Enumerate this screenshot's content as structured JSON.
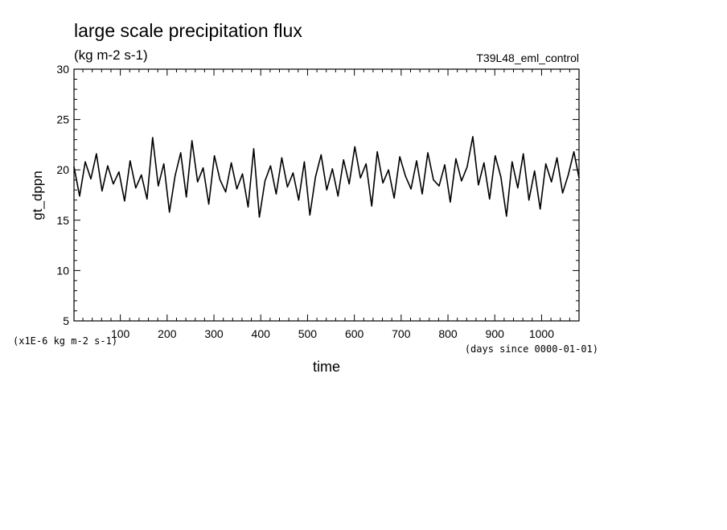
{
  "chart_data": {
    "type": "line",
    "title": "large scale precipitation flux",
    "subtitle": "(kg m-2 s-1)",
    "experiment": "T39L48_eml_control",
    "xlabel": "time",
    "xunits": "(days since 0000-01-01)",
    "ylabel": "gt_dppn",
    "yunits": "(x1E-6 kg m-2 s-1)",
    "xlim": [
      1,
      1080
    ],
    "ylim": [
      5,
      30
    ],
    "x_ticks": [
      100,
      200,
      300,
      400,
      500,
      600,
      700,
      800,
      900,
      1000
    ],
    "y_ticks": [
      5,
      10,
      15,
      20,
      25,
      30
    ],
    "grid": false,
    "legend": "none",
    "line_color": "#000000",
    "series": [
      {
        "x": [
          1,
          13,
          25,
          37,
          49,
          61,
          73,
          85,
          97,
          109,
          121,
          133,
          145,
          157,
          169,
          181,
          193,
          205,
          217,
          229,
          241,
          253,
          265,
          277,
          289,
          301,
          313,
          325,
          337,
          349,
          361,
          373,
          385,
          397,
          409,
          421,
          433,
          445,
          457,
          469,
          481,
          493,
          505,
          517,
          529,
          541,
          553,
          565,
          577,
          589,
          601,
          613,
          625,
          637,
          649,
          661,
          673,
          685,
          697,
          709,
          721,
          733,
          745,
          757,
          769,
          781,
          793,
          805,
          817,
          829,
          841,
          853,
          865,
          877,
          889,
          901,
          913,
          925,
          937,
          949,
          961,
          973,
          985,
          997,
          1009,
          1021,
          1033,
          1045,
          1057,
          1069,
          1080
        ],
        "values": [
          20.3,
          17.4,
          20.8,
          19.1,
          21.6,
          17.9,
          20.4,
          18.6,
          19.8,
          16.9,
          20.9,
          18.2,
          19.5,
          17.1,
          23.2,
          18.4,
          20.6,
          15.8,
          19.4,
          21.7,
          17.3,
          22.9,
          18.8,
          20.2,
          16.6,
          21.4,
          19.0,
          17.8,
          20.7,
          18.1,
          19.6,
          16.3,
          22.1,
          15.3,
          18.9,
          20.4,
          17.6,
          21.2,
          18.3,
          19.7,
          17.0,
          20.8,
          15.5,
          19.3,
          21.5,
          18.0,
          20.1,
          17.4,
          21.0,
          18.6,
          22.3,
          19.2,
          20.6,
          16.4,
          21.8,
          18.7,
          20.0,
          17.2,
          21.3,
          19.4,
          18.1,
          20.9,
          17.6,
          21.7,
          19.0,
          18.4,
          20.5,
          16.8,
          21.1,
          18.9,
          20.3,
          23.3,
          18.5,
          20.7,
          17.1,
          21.4,
          19.3,
          15.4,
          20.8,
          18.2,
          21.6,
          17.0,
          19.9,
          16.1,
          20.6,
          18.8,
          21.2,
          17.7,
          19.5,
          21.8,
          19.2
        ]
      }
    ]
  }
}
